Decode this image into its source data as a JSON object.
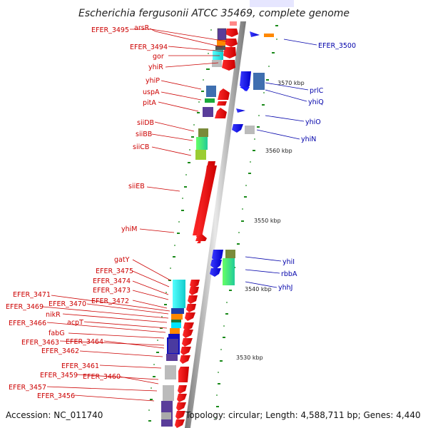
{
  "title": "Escherichia fergusonii ATCC 35469, complete genome",
  "accession": "Accession: NC_011740",
  "topology": "Topology: circular; Length: 4,588,711 bp; Genes: 4,440",
  "kbp_ticks": [
    "3570 kbp",
    "3560 kbp",
    "3550 kbp",
    "3540 kbp",
    "3530 kbp"
  ],
  "left_labels": [
    "EFER_3495",
    "arsR",
    "EFER_3494",
    "gor",
    "yhiR",
    "yhiP",
    "uspA",
    "pitA",
    "siiDB",
    "siiBB",
    "siiCB",
    "siiEB",
    "yhiM",
    "gatY",
    "EFER_3475",
    "EFER_3474",
    "EFER_3473",
    "EFER_3472",
    "EFER_3471",
    "EFER_3470",
    "EFER_3469",
    "nikR",
    "acpT",
    "EFER_3466",
    "fabG",
    "EFER_3464",
    "EFER_3463",
    "EFER_3462",
    "EFER_3461",
    "EFER_3460",
    "EFER_3459",
    "EFER_3457",
    "EFER_3456"
  ],
  "right_labels": [
    "EFER_3500",
    "prlC",
    "yhiQ",
    "yhiO",
    "yhiN",
    "yhiI",
    "rbbA",
    "yhhJ"
  ],
  "colors": {
    "forward": "#ff0000",
    "reverse": "#0000ee",
    "leader_left": "#cc0000",
    "leader_right": "#0000aa",
    "backbone": "#999999",
    "tick": "#1a8a1a"
  }
}
